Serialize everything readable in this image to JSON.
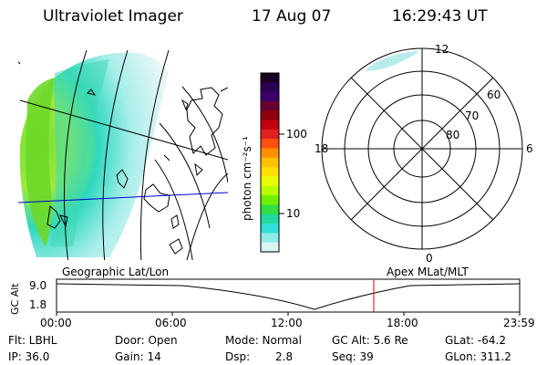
{
  "header": {
    "instrument": "Ultraviolet Imager",
    "date": "17 Aug 07",
    "time": "16:29:43 UT"
  },
  "colorbar": {
    "unit_label": "photon cm⁻²s⁻¹",
    "ticks": [
      "100",
      "10"
    ],
    "colors": [
      "#1a0020",
      "#2b0050",
      "#3a0068",
      "#6a0030",
      "#8e0010",
      "#c00010",
      "#e02020",
      "#ff5010",
      "#ff9000",
      "#ffc000",
      "#ffe000",
      "#e8ff00",
      "#b8ff00",
      "#70f000",
      "#30e040",
      "#20d8a0",
      "#30e0d8",
      "#90ece8",
      "#d8f4f4"
    ]
  },
  "polar": {
    "mlt_labels": {
      "top": "12",
      "left": "18",
      "right": "6",
      "bottom": "0"
    },
    "lat_labels": [
      "60",
      "70",
      "80"
    ]
  },
  "map_label": "Geographic Lat/Lon",
  "apex_label": "Apex MLat/MLT",
  "altitude_plot": {
    "ylabel": "GC Alt",
    "y_ticks": [
      "9.0",
      "1.8"
    ],
    "x_ticks": [
      "00:00",
      "06:00",
      "12:00",
      "18:00",
      "23:59"
    ],
    "marker_color": "#e00000"
  },
  "info": {
    "flt": "Flt: LBHL",
    "door": "Door: Open",
    "mode": "Mode: Normal",
    "gc_alt": "GC Alt: 5.6 Re",
    "glat": "GLat: -64.2",
    "ip": "IP: 36.0",
    "gain": "Gain: 14",
    "dsp_label": "Dsp:",
    "dsp_value": "2.8",
    "seq": "Seq: 39",
    "glon": "GLon: 311.2"
  }
}
